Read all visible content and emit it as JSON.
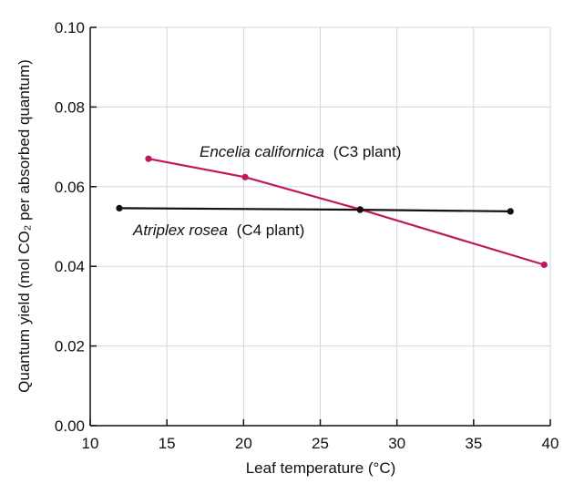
{
  "chart_data": {
    "type": "line",
    "xlabel": "Leaf temperature (°C)",
    "ylabel": "Quantum yield (mol CO₂ per absorbed quantum)",
    "xlim": [
      10,
      40
    ],
    "ylim": [
      0,
      0.1
    ],
    "x_ticks": [
      "10",
      "15",
      "20",
      "25",
      "30",
      "35",
      "40"
    ],
    "y_ticks": [
      "0.00",
      "0.02",
      "0.04",
      "0.06",
      "0.08",
      "0.10"
    ],
    "grid": true,
    "series": [
      {
        "name_species": "Encelia californica",
        "name_type": "(C3 plant)",
        "color": "#c0175d",
        "x": [
          13.8,
          20.1,
          27.6,
          39.6
        ],
        "y": [
          0.067,
          0.0624,
          0.0543,
          0.0404
        ]
      },
      {
        "name_species": "Atriplex rosea",
        "name_type": "(C4 plant)",
        "color": "#111111",
        "x": [
          11.9,
          27.6,
          37.4
        ],
        "y": [
          0.0546,
          0.0542,
          0.0538
        ]
      }
    ]
  }
}
